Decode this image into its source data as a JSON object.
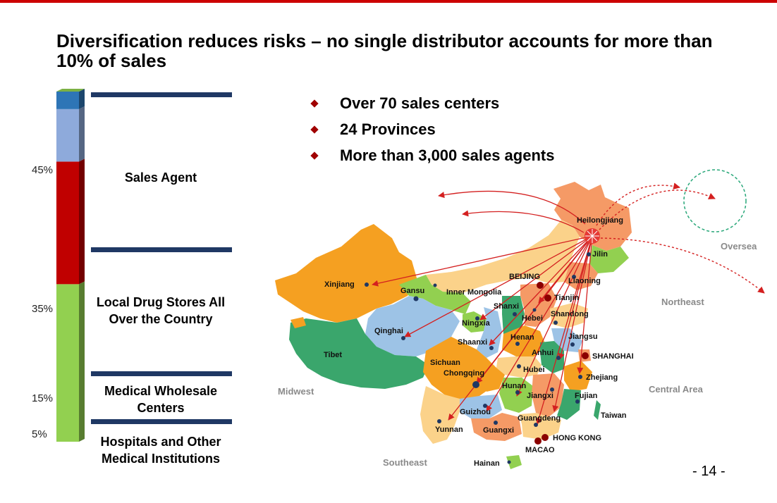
{
  "title": "Diversification reduces risks – no single distributor accounts for more than 10% of sales",
  "chart_data": {
    "type": "bar",
    "stacked": true,
    "categories": [
      "Sales Agent",
      "Local Drug Stores All Over the Country",
      "Medical Wholesale Centers",
      "Hospitals and Other Medical Institutions"
    ],
    "values": [
      45,
      35,
      15,
      5
    ],
    "value_labels": [
      "45%",
      "35%",
      "15%",
      "5%"
    ],
    "colors": [
      "#92d050",
      "#c00000",
      "#8eaadb",
      "#2e75b6"
    ]
  },
  "bullets": [
    "Over 70 sales centers",
    "24 Provinces",
    "More than 3,000 sales agents"
  ],
  "map": {
    "hub": "Heilongjiang",
    "region_labels": [
      "Oversea",
      "Northeast",
      "Central Area",
      "Midwest",
      "Southeast"
    ],
    "province_labels": [
      "Heilongjiang",
      "Jilin",
      "Liaoning",
      "BEIJING",
      "Tianjin",
      "Hebei",
      "Shandong",
      "Inner Mongolia",
      "Xinjiang",
      "Gansu",
      "Ningxia",
      "Shanxi",
      "Qinghai",
      "Shaanxi",
      "Henan",
      "Jiangsu",
      "SHANGHAI",
      "Anhui",
      "Tibet",
      "Sichuan",
      "Chongqing",
      "Hubei",
      "Zhejiang",
      "Hunan",
      "Jiangxi",
      "Fujian",
      "Guizhou",
      "Yunnan",
      "Guangxi",
      "Guangdeng",
      "Taiwan",
      "HONG KONG",
      "MACAO",
      "Hainan"
    ]
  },
  "page_number": "- 14 -"
}
